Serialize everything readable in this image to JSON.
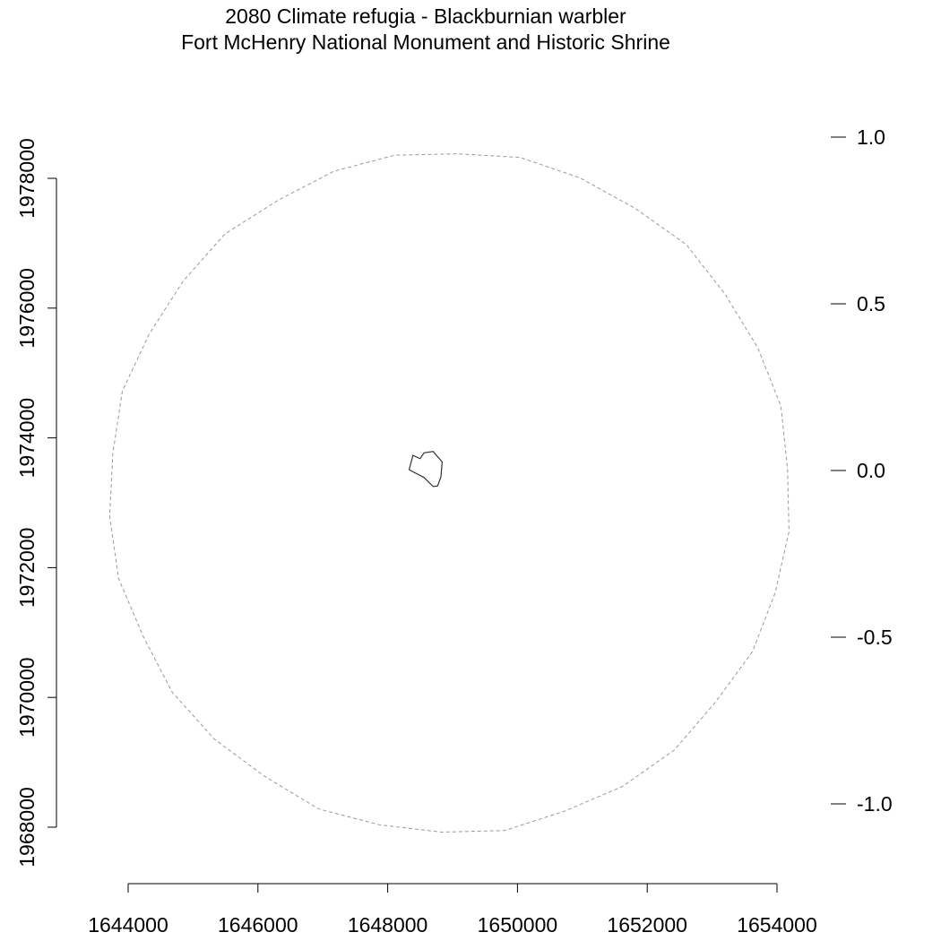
{
  "title": {
    "line1": "2080 Climate refugia - Blackburnian warbler",
    "line2": "Fort McHenry National Monument and Historic Shrine"
  },
  "axes": {
    "x": {
      "ticks": [
        1644000,
        1646000,
        1648000,
        1650000,
        1652000,
        1654000
      ],
      "labels": [
        "1644000",
        "1646000",
        "1648000",
        "1650000",
        "1652000",
        "1654000"
      ]
    },
    "y_left": {
      "ticks": [
        1968000,
        1970000,
        1972000,
        1974000,
        1976000,
        1978000
      ],
      "labels": [
        "1968000",
        "1970000",
        "1972000",
        "1974000",
        "1976000",
        "1978000"
      ]
    },
    "y_right": {
      "ticks": [
        1.0,
        0.5,
        0.0,
        -0.5,
        -1.0
      ],
      "labels": [
        "1.0",
        "0.5",
        "0.0",
        "-0.5",
        "-1.0"
      ]
    }
  },
  "map": {
    "buffer_circle": {
      "center": [
        1648955,
        1973160
      ],
      "radius": 5250,
      "style": "dashed",
      "color": "#999999"
    },
    "park_boundary": {
      "points": [
        [
          1648330,
          1973510
        ],
        [
          1648390,
          1973730
        ],
        [
          1648500,
          1973680
        ],
        [
          1648560,
          1973770
        ],
        [
          1648700,
          1973790
        ],
        [
          1648840,
          1973630
        ],
        [
          1648820,
          1973400
        ],
        [
          1648770,
          1973260
        ],
        [
          1648700,
          1973250
        ],
        [
          1648630,
          1973320
        ],
        [
          1648560,
          1973390
        ]
      ],
      "color": "#333333"
    }
  }
}
